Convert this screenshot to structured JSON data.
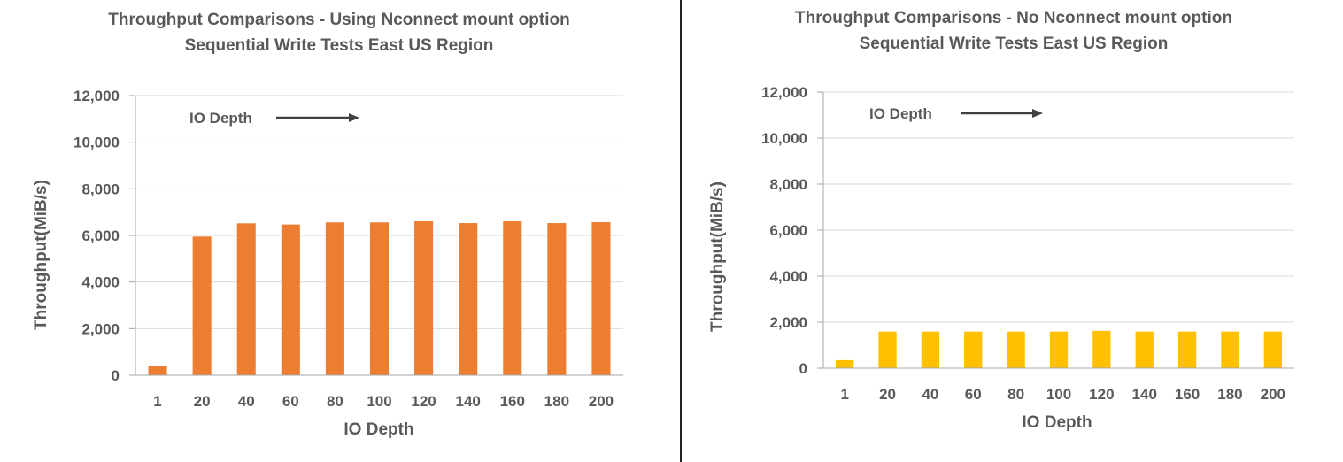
{
  "chart_data": [
    {
      "type": "bar",
      "title": "Throughput Comparisons - Using Nconnect mount option",
      "subtitle": "Sequential Write Tests East US Region",
      "xlabel": "IO Depth",
      "ylabel": "Throughput(MiB/s)",
      "annotation": "IO Depth",
      "categories": [
        "1",
        "20",
        "40",
        "60",
        "80",
        "100",
        "120",
        "140",
        "160",
        "180",
        "200"
      ],
      "values": [
        380,
        5950,
        6520,
        6470,
        6560,
        6560,
        6610,
        6530,
        6610,
        6530,
        6570
      ],
      "ylim": [
        0,
        12000
      ],
      "yticks": [
        "0",
        "2,000",
        "4,000",
        "6,000",
        "8,000",
        "10,000",
        "12,000"
      ],
      "bar_color": "#ED7D31",
      "grid": true,
      "legend": "none"
    },
    {
      "type": "bar",
      "title": "Throughput Comparisons - No Nconnect mount option",
      "subtitle": "Sequential Write Tests East US Region",
      "xlabel": "IO Depth",
      "ylabel": "Throughput(MiB/s)",
      "annotation": "IO Depth",
      "categories": [
        "1",
        "20",
        "40",
        "60",
        "80",
        "100",
        "120",
        "140",
        "160",
        "180",
        "200"
      ],
      "values": [
        350,
        1590,
        1590,
        1590,
        1590,
        1590,
        1620,
        1590,
        1590,
        1590,
        1590
      ],
      "ylim": [
        0,
        12000
      ],
      "yticks": [
        "0",
        "2,000",
        "4,000",
        "6,000",
        "8,000",
        "10,000",
        "12,000"
      ],
      "bar_color": "#FFC000",
      "grid": true,
      "legend": "none"
    }
  ]
}
